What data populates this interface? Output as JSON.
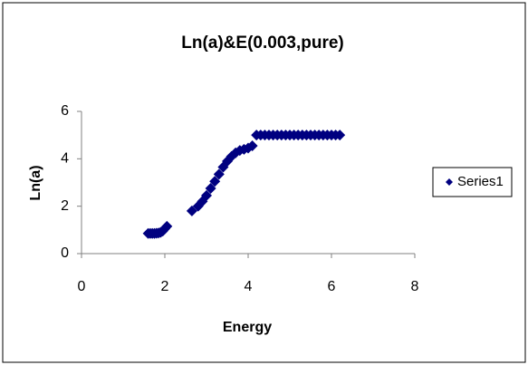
{
  "chart_data": {
    "type": "scatter",
    "title": "Ln(a)&E(0.003,pure)",
    "x_label": "Energy",
    "y_label": "Ln(a)",
    "xlim": [
      0,
      8
    ],
    "xticks": [
      0,
      2,
      4,
      6,
      8
    ],
    "ylim": [
      0,
      6
    ],
    "yticks": [
      0,
      2,
      4,
      6
    ],
    "grid": false,
    "legend": "right",
    "series": [
      {
        "name": "Series1",
        "color": "#000080",
        "x": [
          1.6,
          1.65,
          1.7,
          1.75,
          1.8,
          1.85,
          1.9,
          1.95,
          2.0,
          2.05,
          2.65,
          2.8,
          2.9,
          3.0,
          3.1,
          3.2,
          3.3,
          3.4,
          3.5,
          3.6,
          3.7,
          3.8,
          3.9,
          4.0,
          4.1,
          4.2,
          4.3,
          4.4,
          4.5,
          4.6,
          4.7,
          4.8,
          4.9,
          5.0,
          5.1,
          5.2,
          5.3,
          5.4,
          5.5,
          5.6,
          5.7,
          5.8,
          5.9,
          6.0,
          6.1,
          6.2
        ],
        "values": [
          0.85,
          0.85,
          0.85,
          0.85,
          0.86,
          0.87,
          0.9,
          0.95,
          1.05,
          1.15,
          1.8,
          2.0,
          2.2,
          2.45,
          2.75,
          3.05,
          3.35,
          3.65,
          3.9,
          4.1,
          4.25,
          4.35,
          4.4,
          4.45,
          4.55,
          5,
          5,
          5,
          5,
          5,
          5,
          5,
          5,
          5,
          5,
          5,
          5,
          5,
          5,
          5,
          5,
          5,
          5,
          5,
          5,
          5
        ]
      }
    ]
  }
}
